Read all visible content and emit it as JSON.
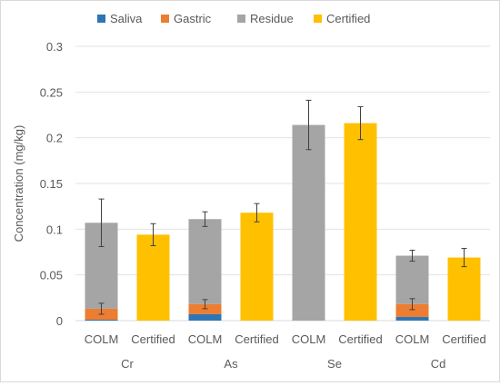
{
  "chart_data": {
    "type": "bar",
    "stacked": true,
    "title": "",
    "ylabel": "Concentration (mg/kg)",
    "xlabel": "",
    "ylim": [
      0,
      0.3
    ],
    "yticks": [
      "0",
      "0.05",
      "0.1",
      "0.15",
      "0.2",
      "0.25",
      "0.3"
    ],
    "grid": true,
    "legend_position": "top",
    "groups": [
      {
        "label": "Cr",
        "bars": [
          {
            "label": "COLM",
            "stack": [
              {
                "series": "Saliva",
                "value": 0.001
              },
              {
                "series": "Gastric",
                "value": 0.012,
                "error": 0.006
              },
              {
                "series": "Residue",
                "value": 0.094,
                "error": 0.026
              }
            ]
          },
          {
            "label": "Certified",
            "stack": [
              {
                "series": "Certified",
                "value": 0.094,
                "error": 0.012
              }
            ]
          }
        ]
      },
      {
        "label": "As",
        "bars": [
          {
            "label": "COLM",
            "stack": [
              {
                "series": "Saliva",
                "value": 0.007
              },
              {
                "series": "Gastric",
                "value": 0.011,
                "error": 0.005
              },
              {
                "series": "Residue",
                "value": 0.093,
                "error": 0.008
              }
            ]
          },
          {
            "label": "Certified",
            "stack": [
              {
                "series": "Certified",
                "value": 0.118,
                "error": 0.01
              }
            ]
          }
        ]
      },
      {
        "label": "Se",
        "bars": [
          {
            "label": "COLM",
            "stack": [
              {
                "series": "Saliva",
                "value": 0.0
              },
              {
                "series": "Gastric",
                "value": 0.0
              },
              {
                "series": "Residue",
                "value": 0.214,
                "error": 0.027
              }
            ]
          },
          {
            "label": "Certified",
            "stack": [
              {
                "series": "Certified",
                "value": 0.216,
                "error": 0.018
              }
            ]
          }
        ]
      },
      {
        "label": "Cd",
        "bars": [
          {
            "label": "COLM",
            "stack": [
              {
                "series": "Saliva",
                "value": 0.004
              },
              {
                "series": "Gastric",
                "value": 0.014,
                "error": 0.006
              },
              {
                "series": "Residue",
                "value": 0.053,
                "error": 0.006
              }
            ]
          },
          {
            "label": "Certified",
            "stack": [
              {
                "series": "Certified",
                "value": 0.069,
                "error": 0.01
              }
            ]
          }
        ]
      }
    ],
    "series": [
      {
        "name": "Saliva",
        "color": "#2e75b6"
      },
      {
        "name": "Gastric",
        "color": "#ed7d31"
      },
      {
        "name": "Residue",
        "color": "#a5a5a5"
      },
      {
        "name": "Certified",
        "color": "#ffc000"
      }
    ]
  }
}
